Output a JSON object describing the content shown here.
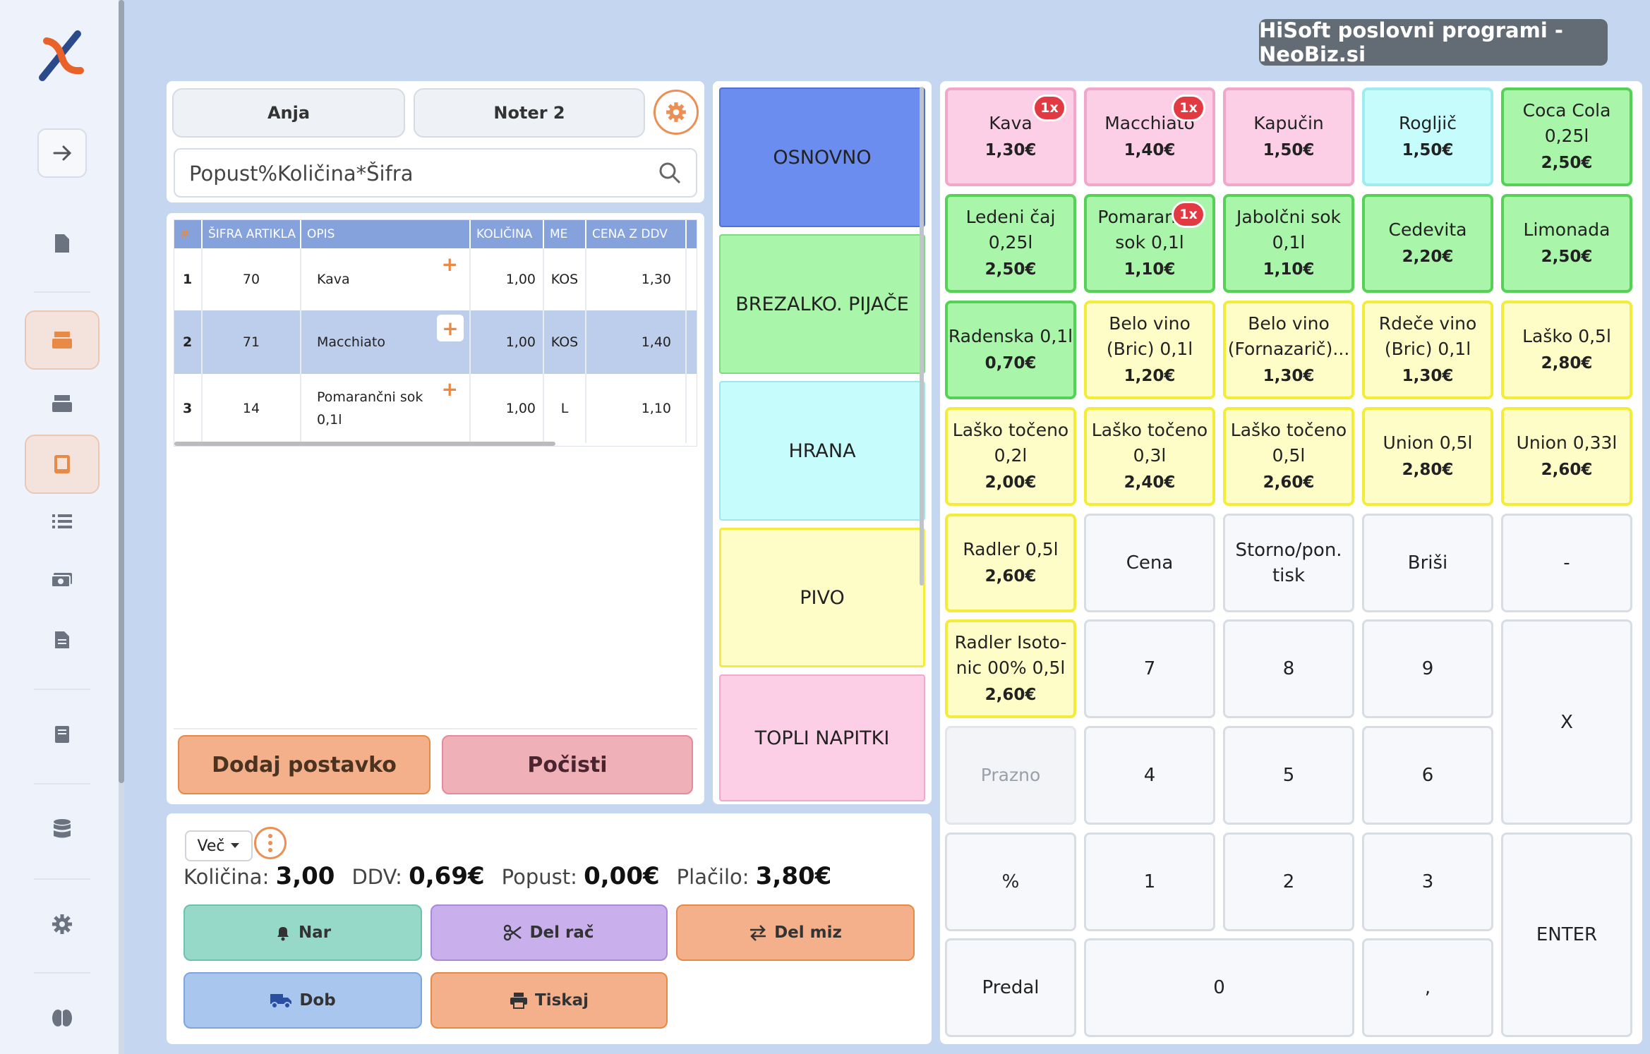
{
  "brand": "HiSoft poslovni programi - NeoBiz.si",
  "sidebar": {
    "items": [
      "logo",
      "expand-arrow-icon",
      "document-icon",
      "cash-register-icon",
      "cash-register-icon",
      "tablet-icon",
      "list-icon",
      "money-icon",
      "receipt-icon",
      "book-icon",
      "database-icon",
      "settings-icon",
      "brain-icon"
    ]
  },
  "header": {
    "user": "Anja",
    "device": "Noter 2"
  },
  "search": {
    "placeholder": "Popust%Količina*Šifra"
  },
  "table": {
    "columns": [
      "#",
      "ŠIFRA ARTIKLA",
      "OPIS",
      "KOLIČINA",
      "ME",
      "CENA Z DDV",
      ""
    ],
    "rows": [
      {
        "num": "1",
        "code": "70",
        "desc": "Kava",
        "qty": "1,00",
        "unit": "KOS",
        "price": "1,30"
      },
      {
        "num": "2",
        "code": "71",
        "desc": "Macchiato",
        "qty": "1,00",
        "unit": "KOS",
        "price": "1,40"
      },
      {
        "num": "3",
        "code": "14",
        "desc": "Pomarančni sok 0,1l",
        "qty": "1,00",
        "unit": "L",
        "price": "1,10"
      }
    ]
  },
  "buttons": {
    "add": "Dodaj postavko",
    "clear": "Počisti"
  },
  "categories": [
    "OSNOVNO",
    "BREZALKO. PIJAČE",
    "HRANA",
    "PIVO",
    "TOPLI NAPITKI"
  ],
  "products": [
    {
      "name": "Kava",
      "price": "1,30€",
      "badge": "1x"
    },
    {
      "name": "Macchiato",
      "price": "1,40€",
      "badge": "1x"
    },
    {
      "name": "Kapučin",
      "price": "1,50€"
    },
    {
      "name": "Rogljič",
      "price": "1,50€"
    },
    {
      "name": "Coca Cola 0,25l",
      "price": "2,50€"
    },
    {
      "name": "Ledeni čaj 0,25l",
      "price": "2,50€"
    },
    {
      "name": "Pomarančni sok 0,1l",
      "price": "1,10€",
      "badge": "1x"
    },
    {
      "name": "Jabolčni sok 0,1l",
      "price": "1,10€"
    },
    {
      "name": "Cedevita",
      "price": "2,20€"
    },
    {
      "name": "Limonada",
      "price": "2,50€"
    },
    {
      "name": "Radenska 0,1l",
      "price": "0,70€"
    },
    {
      "name": "Belo vino (Bric) 0,1l",
      "price": "1,20€"
    },
    {
      "name": "Belo vino (Fornazarič)...",
      "price": "1,30€"
    },
    {
      "name": "Rdeče vino (Bric) 0,1l",
      "price": "1,30€"
    },
    {
      "name": "Laško 0,5l",
      "price": "2,80€"
    },
    {
      "name": "Laško točeno 0,2l",
      "price": "2,00€"
    },
    {
      "name": "Laško točeno 0,3l",
      "price": "2,40€"
    },
    {
      "name": "Laško točeno 0,5l",
      "price": "2,60€"
    },
    {
      "name": "Union 0,5l",
      "price": "2,80€"
    },
    {
      "name": "Union 0,33l",
      "price": "2,60€"
    },
    {
      "name": "Radler 0,5l",
      "price": "2,60€"
    },
    {
      "name": "Radler Isoto-nic 00% 0,5l",
      "price": "2,60€"
    },
    {
      "name": "Prazno"
    }
  ],
  "keypad": {
    "cena": "Cena",
    "storno": "Storno/pon. tisk",
    "brisi": "Briši",
    "minus": "-",
    "k7": "7",
    "k8": "8",
    "k9": "9",
    "x": "X",
    "k4": "4",
    "k5": "5",
    "k6": "6",
    "pct": "%",
    "k1": "1",
    "k2": "2",
    "k3": "3",
    "enter": "ENTER",
    "predal": "Predal",
    "k0": "0",
    "comma": ","
  },
  "summary": {
    "more": "Več",
    "qty_label": "Količina:",
    "qty": "3,00",
    "vat_label": "DDV:",
    "vat": "0,69€",
    "disc_label": "Popust:",
    "disc": "0,00€",
    "pay_label": "Plačilo:",
    "pay": "3,80€"
  },
  "actions": {
    "nar": "Nar",
    "delrac": "Del rač",
    "delmiz": "Del miz",
    "dob": "Dob",
    "tiskaj": "Tiskaj"
  },
  "colors": {
    "pink": "#fdcfe6",
    "green": "#a9f5a9",
    "cyan": "#c7fcfc",
    "yellow": "#fefdc8",
    "blue": "#6b8def",
    "accent": "#ec8f55"
  }
}
